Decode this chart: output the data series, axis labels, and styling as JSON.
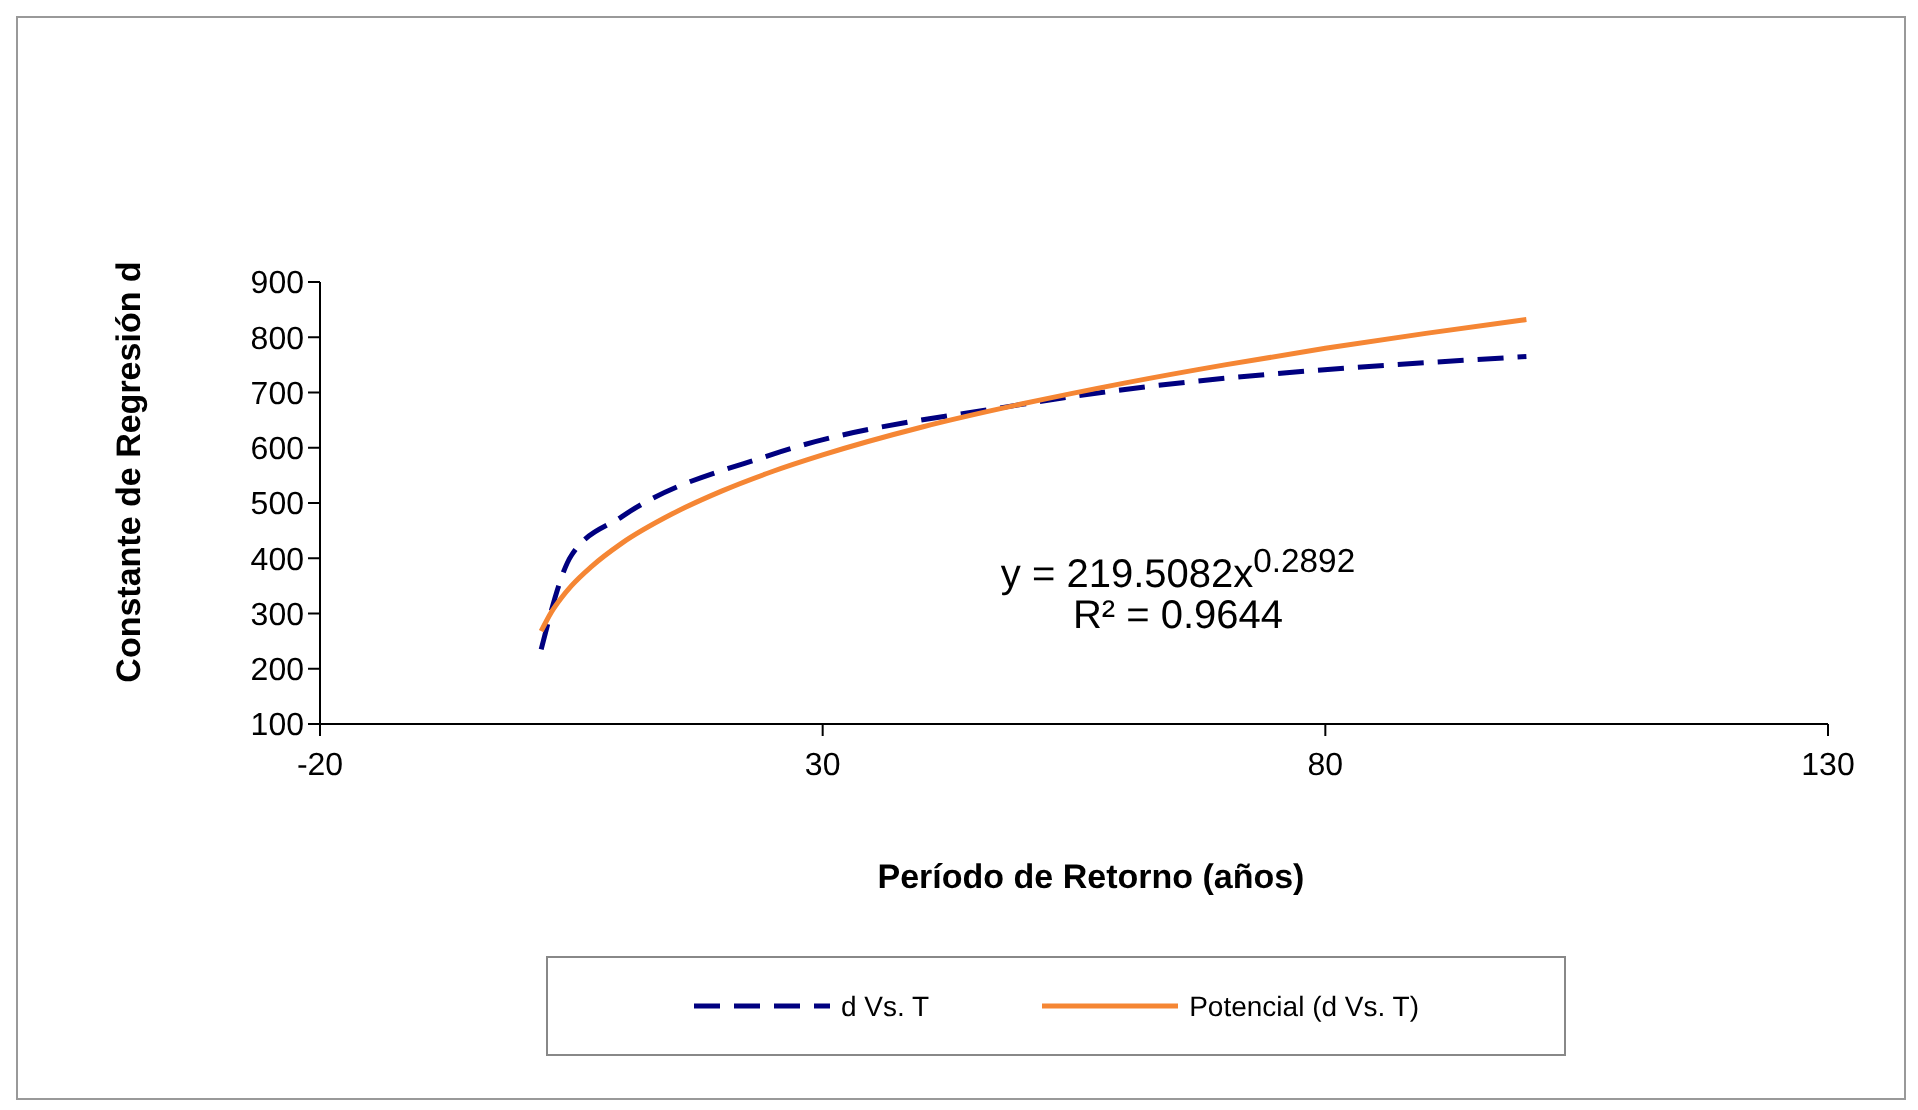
{
  "chart_data": {
    "type": "line",
    "xlabel": "Período de Retorno (años)",
    "ylabel": "Constante de Regresión d",
    "xlim": [
      -20,
      130
    ],
    "xticks": [
      -20,
      30,
      80,
      130
    ],
    "ylim": [
      100,
      900
    ],
    "yticks": [
      100,
      200,
      300,
      400,
      500,
      600,
      700,
      800,
      900
    ],
    "grid": false,
    "legend": "bottom",
    "marker": "none",
    "annotations": [
      "y = 219.5082x$^{0.2892}$",
      "R² = 0.9644"
    ],
    "series": [
      {
        "name": "d Vs. T",
        "color": "#000080",
        "line_style": "dashed",
        "x": [
          2,
          5,
          10,
          25,
          50,
          100
        ],
        "values": [
          235,
          405,
          475,
          588,
          679,
          765
        ]
      },
      {
        "name": "Potencial (d Vs. T)",
        "color": "#f58634",
        "line_style": "solid",
        "x": [
          2,
          3,
          4,
          5,
          7,
          10,
          15,
          20,
          25,
          30,
          40,
          50,
          60,
          70,
          80,
          90,
          100
        ],
        "values": [
          268,
          302,
          328,
          350,
          385,
          427,
          480,
          522,
          557,
          587,
          638,
          680,
          717,
          750,
          780,
          807,
          832
        ]
      }
    ]
  }
}
